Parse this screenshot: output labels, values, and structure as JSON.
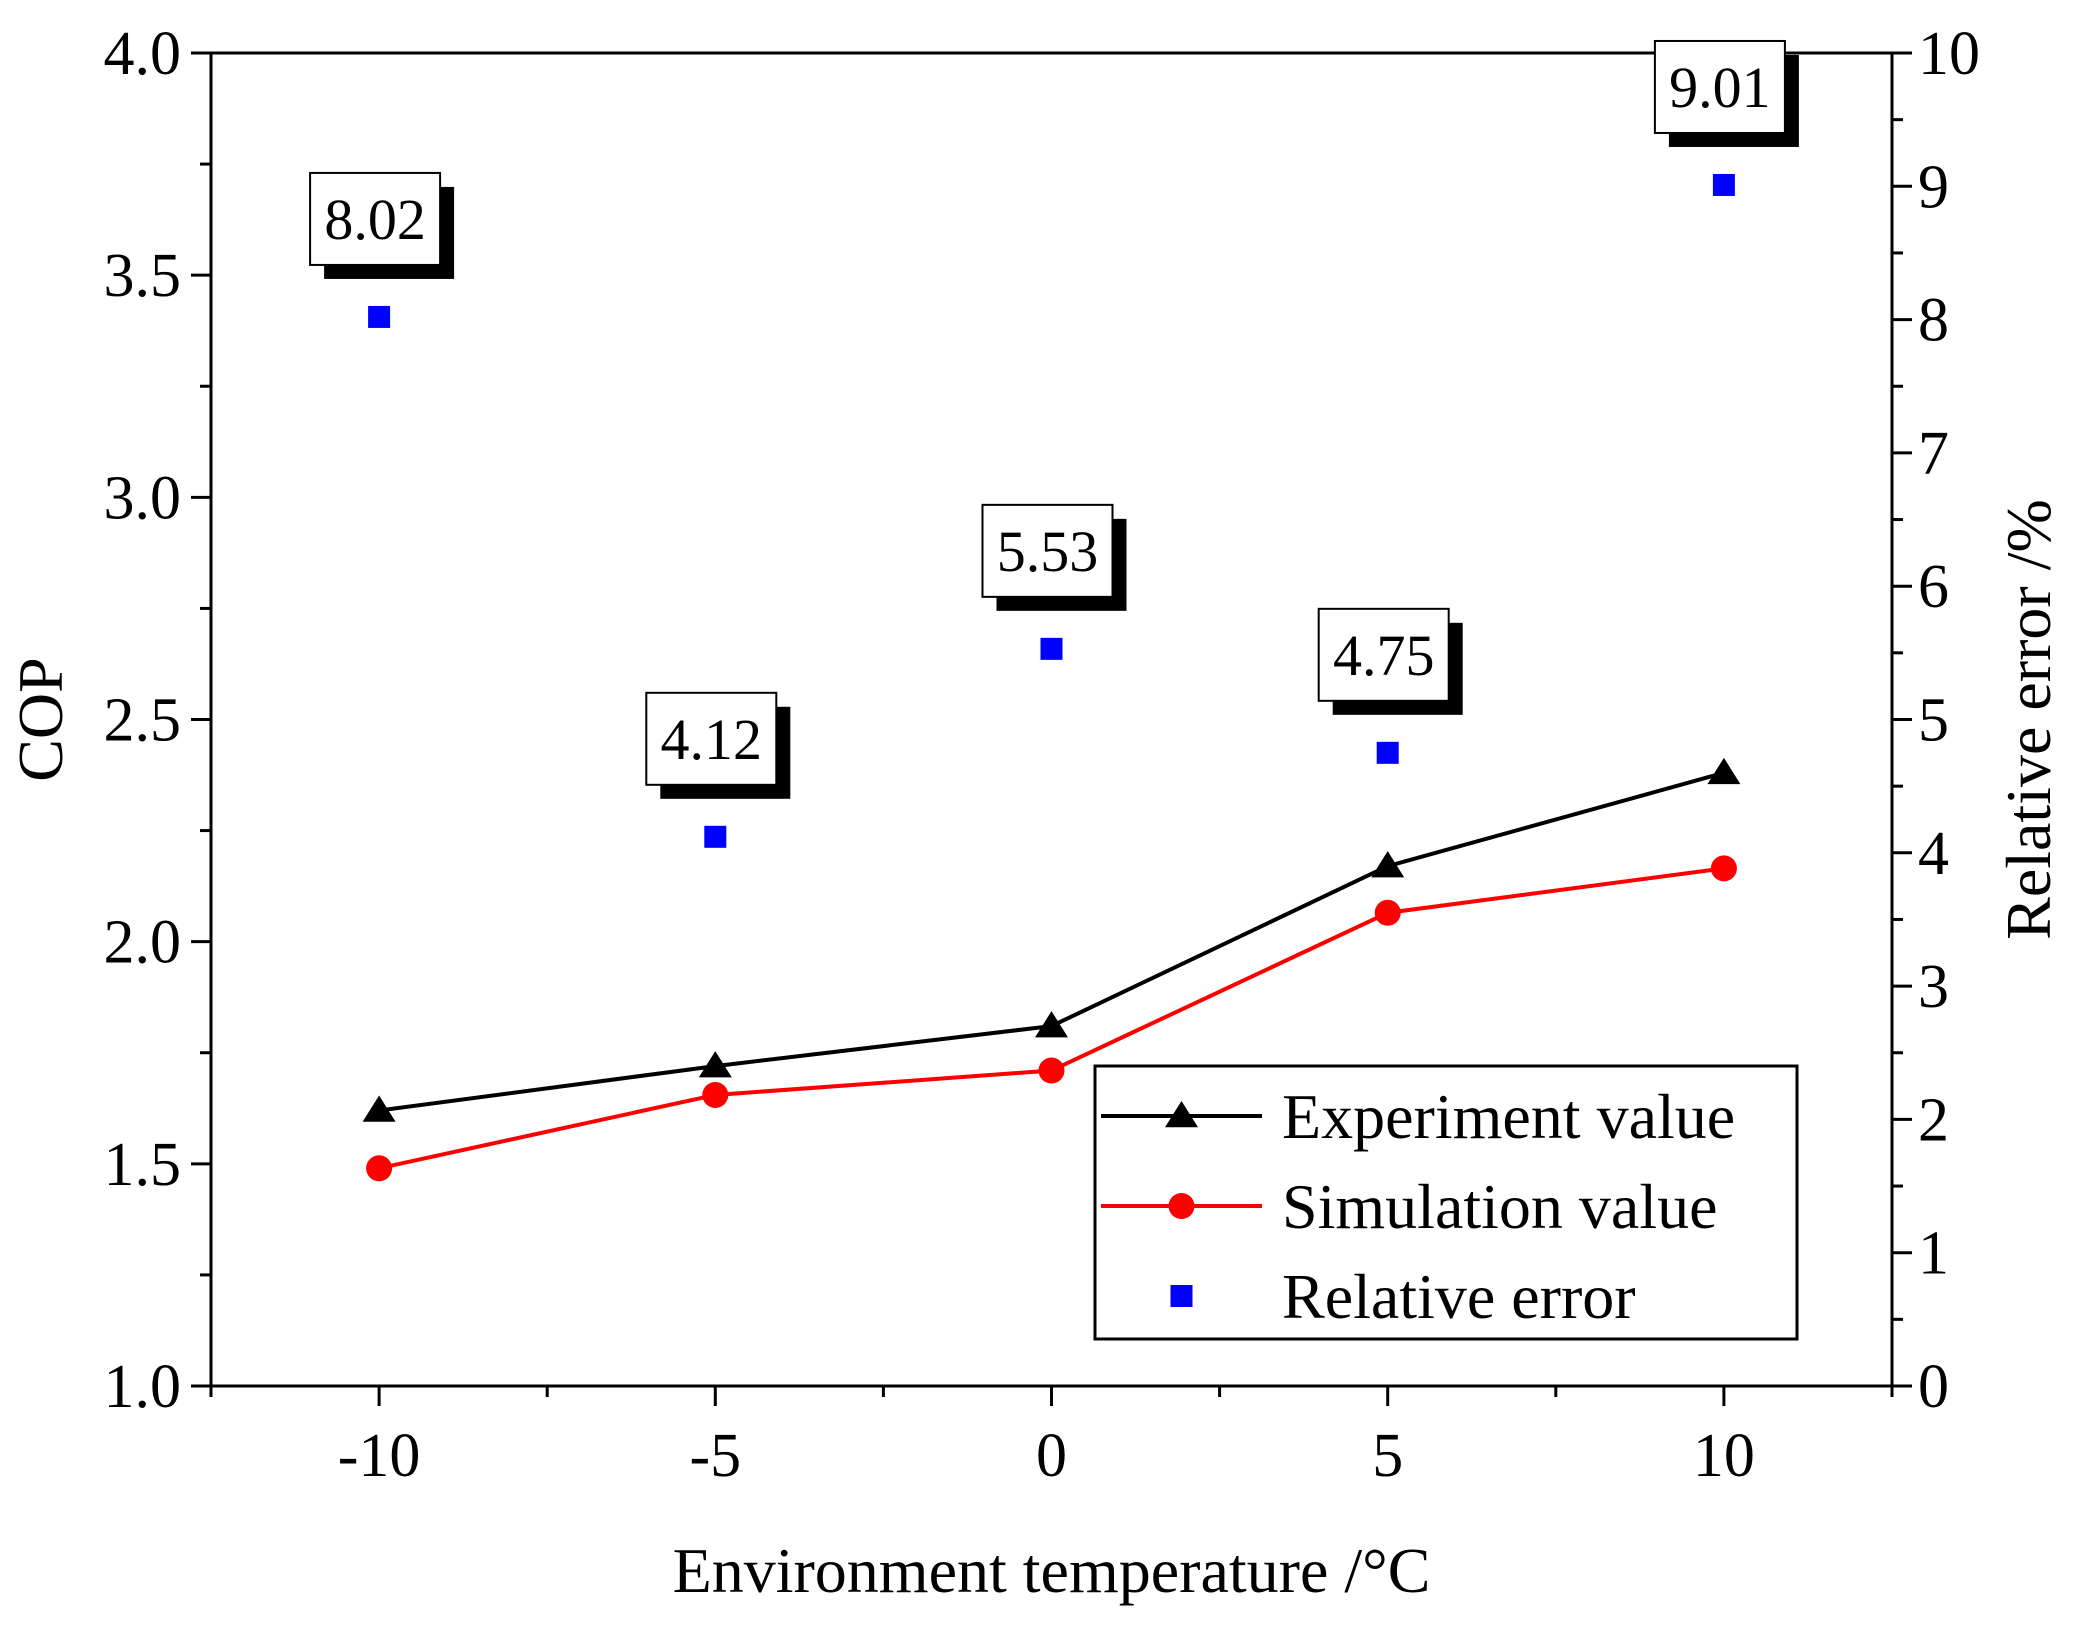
{
  "chart_data": {
    "type": "line",
    "title": "",
    "xlabel": "Environment temperature /°C",
    "ylabel": "COP",
    "y2label": "Relative error /%",
    "x": [
      -10,
      -5,
      0,
      5,
      10
    ],
    "xlim": [
      -12.5,
      12.5
    ],
    "xticks": [
      "-10",
      "-5",
      "0",
      "5",
      "10"
    ],
    "ylim": [
      1.0,
      4.0
    ],
    "yticks": [
      "1.0",
      "1.5",
      "2.0",
      "2.5",
      "3.0",
      "3.5",
      "4.0"
    ],
    "y2lim": [
      0,
      10
    ],
    "y2ticks": [
      "0",
      "1",
      "2",
      "3",
      "4",
      "5",
      "6",
      "7",
      "8",
      "9",
      "10"
    ],
    "grid": false,
    "legend_position": "bottom-right",
    "series": [
      {
        "name": "Experiment value",
        "axis": "left",
        "color": "#000000",
        "marker": "triangle",
        "values": [
          1.62,
          1.72,
          1.81,
          2.17,
          2.38
        ]
      },
      {
        "name": "Simulation value",
        "axis": "left",
        "color": "#ff0000",
        "marker": "circle",
        "values": [
          1.49,
          1.655,
          1.71,
          2.065,
          2.165
        ]
      },
      {
        "name": "Relative error",
        "axis": "right",
        "color": "#0000ff",
        "marker": "square",
        "line": false,
        "values": [
          8.02,
          4.12,
          5.53,
          4.75,
          9.01
        ]
      }
    ],
    "annotations": [
      "8.02",
      "4.12",
      "5.53",
      "4.75",
      "9.01"
    ]
  }
}
